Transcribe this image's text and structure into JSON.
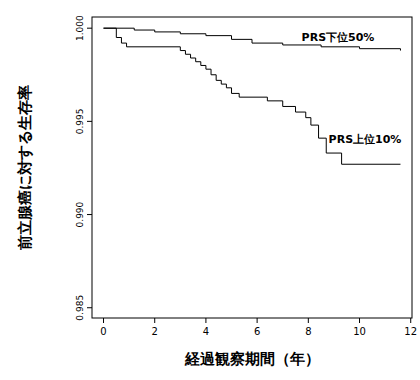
{
  "chart_data": {
    "type": "line",
    "x_label": "経過観察期間（年）",
    "y_label": "前立腺癌に対する生存率",
    "xlim": [
      -0.45,
      12.05
    ],
    "xticks": [
      0,
      2,
      4,
      6,
      8,
      10,
      12
    ],
    "ylim": [
      0.98445,
      1.0006
    ],
    "yticks": [
      0.985,
      {
        "value": 0.99,
        "label": "0.990"
      },
      0.995,
      {
        "value": 1,
        "label": "1.000"
      }
    ],
    "grid": false,
    "line_style": "step",
    "series": [
      {
        "name": "PRS下位50%",
        "color": "#000000",
        "x": [
          0,
          1.2,
          2.0,
          3.0,
          4.0,
          5.0,
          5.8,
          7.0,
          8.5,
          10.0,
          11.6
        ],
        "values": [
          1.0,
          0.9999,
          0.9998,
          0.9997,
          0.9996,
          0.9994,
          0.9992,
          0.9991,
          0.999,
          0.9989,
          0.9988
        ]
      },
      {
        "name": "PRS上位10%",
        "color": "#000000",
        "x": [
          0,
          0.5,
          0.7,
          0.9,
          3.0,
          3.2,
          3.4,
          3.6,
          3.8,
          4.0,
          4.2,
          4.4,
          4.6,
          4.8,
          5.0,
          5.3,
          6.4,
          7.0,
          7.5,
          7.9,
          8.1,
          8.4,
          8.7,
          9.3,
          11.6
        ],
        "values": [
          1.0,
          0.9995,
          0.9992,
          0.999,
          0.9988,
          0.9986,
          0.9984,
          0.9982,
          0.998,
          0.9978,
          0.9975,
          0.9972,
          0.997,
          0.9968,
          0.9965,
          0.9963,
          0.9961,
          0.9958,
          0.9955,
          0.9952,
          0.9948,
          0.9941,
          0.9933,
          0.9927,
          0.9927
        ]
      }
    ]
  }
}
